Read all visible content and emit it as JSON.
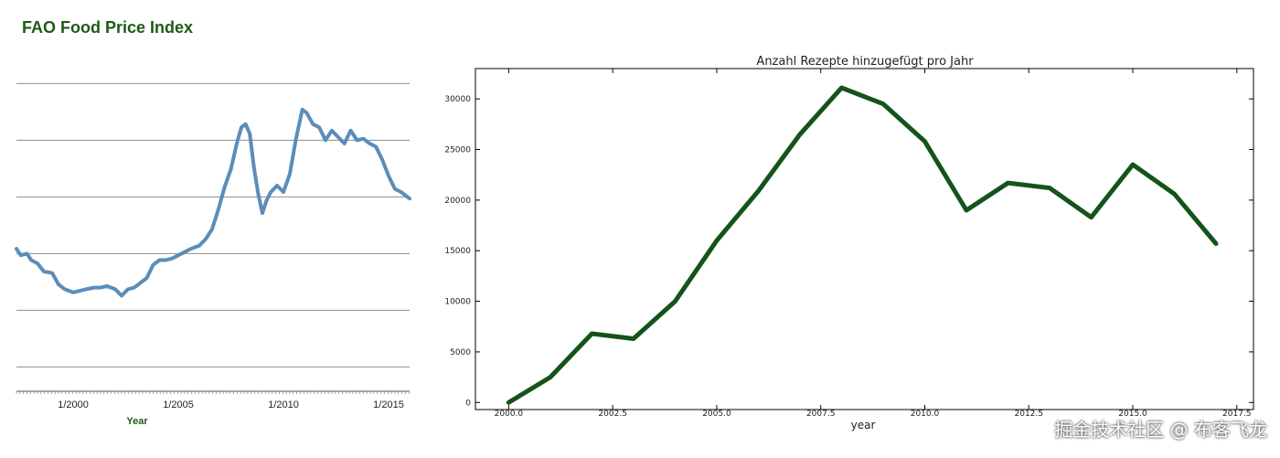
{
  "watermark": "掘金技术社区 @ 布客飞龙",
  "chart_data": [
    {
      "type": "line",
      "title": "FAO Food Price Index",
      "xlabel": "Year",
      "ylabel": "",
      "x_tick_labels": [
        "1/2000",
        "1/2005",
        "1/2010",
        "1/2015"
      ],
      "x_range": [
        1997.3,
        2016.0
      ],
      "y_range": [
        40,
        250
      ],
      "y_gridlines": [
        55,
        90,
        125,
        160,
        195,
        230
      ],
      "series": [
        {
          "color": "#5b8db8",
          "x": [
            1997.3,
            1997.5,
            1997.8,
            1998.0,
            1998.3,
            1998.6,
            1999.0,
            1999.3,
            1999.6,
            2000.0,
            2000.3,
            2000.6,
            2001.0,
            2001.3,
            2001.6,
            2002.0,
            2002.3,
            2002.6,
            2002.9,
            2003.2,
            2003.5,
            2003.8,
            2004.1,
            2004.4,
            2004.7,
            2005.0,
            2005.3,
            2005.6,
            2006.0,
            2006.3,
            2006.6,
            2006.9,
            2007.2,
            2007.5,
            2007.8,
            2008.0,
            2008.2,
            2008.4,
            2008.6,
            2008.8,
            2009.0,
            2009.2,
            2009.4,
            2009.7,
            2010.0,
            2010.3,
            2010.6,
            2010.9,
            2011.1,
            2011.4,
            2011.7,
            2012.0,
            2012.3,
            2012.6,
            2012.9,
            2013.2,
            2013.5,
            2013.8,
            2014.1,
            2014.4,
            2014.7,
            2015.0,
            2015.3,
            2015.6,
            2015.8,
            2016.0
          ],
          "y": [
            128,
            124,
            125,
            121,
            119,
            114,
            113,
            106,
            103,
            101,
            102,
            103,
            104,
            104,
            105,
            103,
            99,
            103,
            104,
            107,
            110,
            118,
            121,
            121,
            122,
            124,
            126,
            128,
            130,
            134,
            140,
            152,
            166,
            177,
            194,
            203,
            205,
            199,
            178,
            162,
            150,
            158,
            163,
            167,
            163,
            174,
            196,
            214,
            212,
            205,
            203,
            195,
            201,
            197,
            193,
            201,
            195,
            196,
            193,
            191,
            183,
            173,
            165,
            163,
            161,
            159
          ]
        }
      ]
    },
    {
      "type": "line",
      "title": "Anzahl Rezepte hinzugefügt pro Jahr",
      "xlabel": "year",
      "ylabel": "",
      "x": [
        2000,
        2001,
        2002,
        2003,
        2004,
        2005,
        2006,
        2007,
        2008,
        2009,
        2010,
        2011,
        2012,
        2013,
        2014,
        2015,
        2016,
        2017
      ],
      "series": [
        {
          "color": "#14531a",
          "values": [
            0,
            2500,
            6800,
            6300,
            10000,
            16000,
            20900,
            26500,
            31100,
            29500,
            25800,
            19000,
            21700,
            21200,
            18300,
            23500,
            20600,
            15700
          ]
        }
      ],
      "xlim": [
        1999.2,
        2017.9
      ],
      "ylim": [
        -700,
        33000
      ],
      "x_ticks": [
        2000.0,
        2002.5,
        2005.0,
        2007.5,
        2010.0,
        2012.5,
        2015.0,
        2017.5
      ],
      "x_tick_labels": [
        "2000.0",
        "2002.5",
        "2005.0",
        "2007.5",
        "2010.0",
        "2012.5",
        "2015.0",
        "2017.5"
      ],
      "y_ticks": [
        0,
        5000,
        10000,
        15000,
        20000,
        25000,
        30000
      ],
      "y_tick_labels": [
        "0",
        "5000",
        "10000",
        "15000",
        "20000",
        "25000",
        "30000"
      ],
      "grid": false,
      "legend": "none"
    }
  ]
}
